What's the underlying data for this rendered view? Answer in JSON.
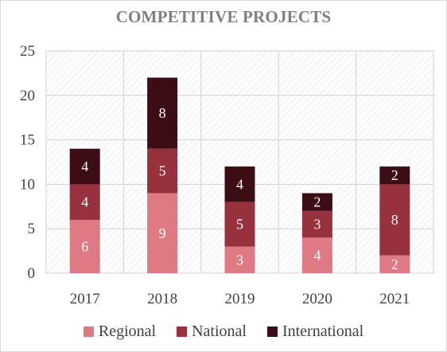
{
  "chart_data": {
    "type": "bar",
    "stacked": true,
    "title": "COMPETITIVE PROJECTS",
    "xlabel": "",
    "ylabel": "",
    "categories": [
      "2017",
      "2018",
      "2019",
      "2020",
      "2021"
    ],
    "series": [
      {
        "name": "Regional",
        "color": "#df7a85",
        "values": [
          6,
          9,
          3,
          4,
          2
        ]
      },
      {
        "name": "National",
        "color": "#97313d",
        "values": [
          4,
          5,
          5,
          3,
          8
        ]
      },
      {
        "name": "International",
        "color": "#3d0d16",
        "values": [
          4,
          8,
          4,
          2,
          2
        ]
      }
    ],
    "ylim": [
      0,
      25
    ],
    "yticks": [
      0,
      5,
      10,
      15,
      20,
      25
    ],
    "grid": true,
    "grid_style": "diagonal-hatch",
    "legend": "bottom",
    "data_labels": true
  }
}
